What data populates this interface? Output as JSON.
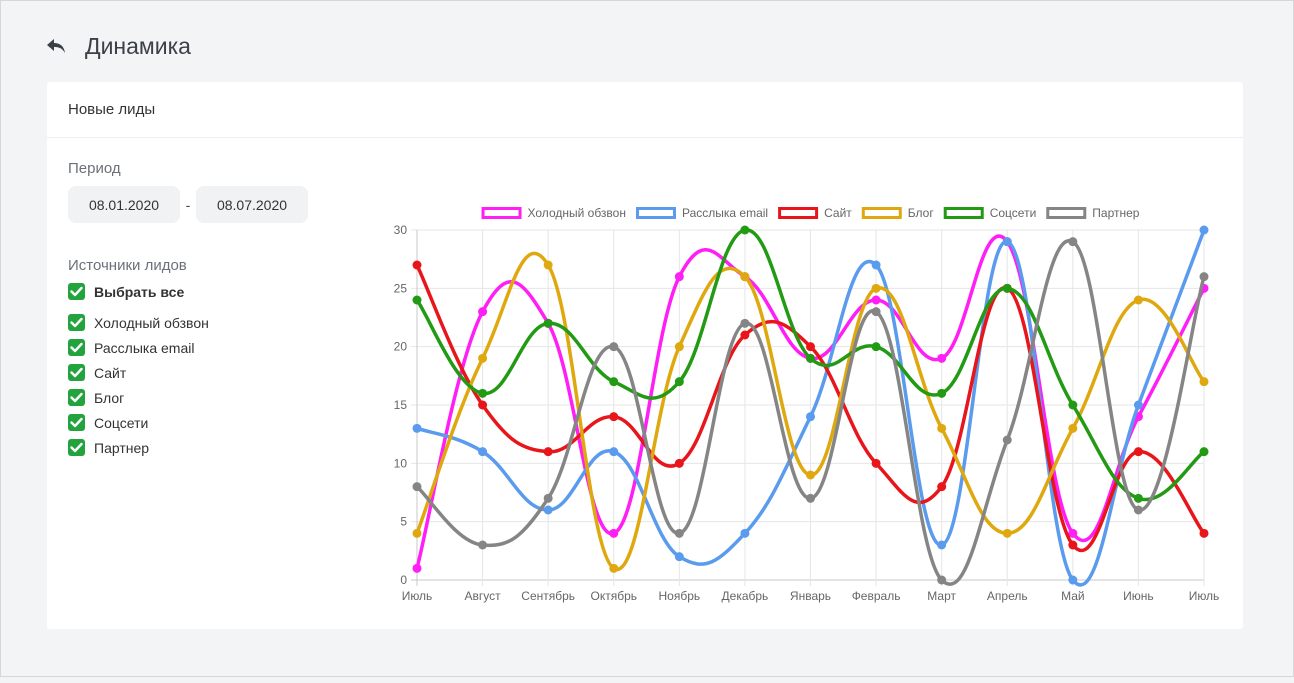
{
  "header": {
    "title": "Динамика"
  },
  "card": {
    "title": "Новые лиды"
  },
  "filters": {
    "period_label": "Период",
    "date_from": "08.01.2020",
    "date_sep": "-",
    "date_to": "08.07.2020",
    "sources_label": "Источники лидов",
    "select_all": "Выбрать все",
    "sources": [
      "Холодный обзвон",
      "Расслыка email",
      "Сайт",
      "Блог",
      "Соцсети",
      "Партнер"
    ],
    "check_color": "#22a33e"
  },
  "chart_data": {
    "type": "line",
    "categories": [
      "Июль",
      "Август",
      "Сентябрь",
      "Октябрь",
      "Ноябрь",
      "Декабрь",
      "Январь",
      "Февраль",
      "Март",
      "Апрель",
      "Май",
      "Июнь",
      "Июль"
    ],
    "ylim": [
      0,
      30
    ],
    "yticks": [
      0,
      5,
      10,
      15,
      20,
      25,
      30
    ],
    "grid": true,
    "legend_position": "top",
    "series": [
      {
        "name": "Холодный обзвон",
        "color": "#ff1ef5",
        "values": [
          1,
          23,
          22,
          4,
          26,
          26,
          19,
          24,
          19,
          29,
          4,
          14,
          25
        ]
      },
      {
        "name": "Расслыка email",
        "color": "#5a9bee",
        "values": [
          13,
          11,
          6,
          11,
          2,
          4,
          14,
          27,
          3,
          29,
          0,
          15,
          30
        ]
      },
      {
        "name": "Сайт",
        "color": "#e8161b",
        "values": [
          27,
          15,
          11,
          14,
          10,
          21,
          20,
          10,
          8,
          25,
          3,
          11,
          4
        ]
      },
      {
        "name": "Блог",
        "color": "#dfa80f",
        "values": [
          4,
          19,
          27,
          1,
          20,
          26,
          9,
          25,
          13,
          4,
          13,
          24,
          17
        ]
      },
      {
        "name": "Соцсети",
        "color": "#239a13",
        "values": [
          24,
          16,
          22,
          17,
          17,
          30,
          19,
          20,
          16,
          25,
          15,
          7,
          11
        ]
      },
      {
        "name": "Партнер",
        "color": "#858585",
        "values": [
          8,
          3,
          7,
          20,
          4,
          22,
          7,
          23,
          0,
          12,
          29,
          6,
          26
        ]
      }
    ]
  }
}
